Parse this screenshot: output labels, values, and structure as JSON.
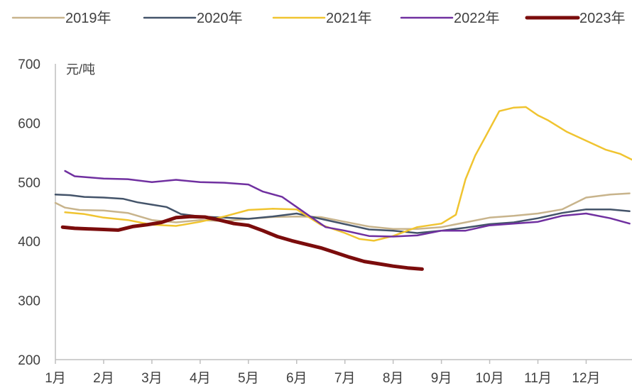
{
  "chart_data": {
    "type": "line",
    "ylabel": "元/吨",
    "ylim": [
      200,
      700
    ],
    "yticks": [
      200,
      300,
      400,
      500,
      600,
      700
    ],
    "xlim": [
      1,
      12.95
    ],
    "categories": [
      "1月",
      "2月",
      "3月",
      "4月",
      "5月",
      "6月",
      "7月",
      "8月",
      "9月",
      "10月",
      "11月",
      "12月"
    ],
    "grid": false,
    "legend": "top",
    "series": [
      {
        "name": "2019年",
        "color": "#c8b48c",
        "width": 2.5,
        "x": [
          1.0,
          1.2,
          1.5,
          2.0,
          2.5,
          3.0,
          3.5,
          4.0,
          4.5,
          5.0,
          5.5,
          6.0,
          6.5,
          7.0,
          7.5,
          8.0,
          8.5,
          9.0,
          9.5,
          10.0,
          10.5,
          11.0,
          11.5,
          12.0,
          12.5,
          12.9
        ],
        "y": [
          465,
          457,
          453,
          452,
          448,
          436,
          432,
          436,
          434,
          438,
          441,
          442,
          441,
          433,
          425,
          421,
          421,
          424,
          432,
          440,
          443,
          447,
          454,
          474,
          479,
          481
        ]
      },
      {
        "name": "2020年",
        "color": "#44546a",
        "width": 2.5,
        "x": [
          1.0,
          1.3,
          1.6,
          2.0,
          2.4,
          2.7,
          3.0,
          3.3,
          3.6,
          4.0,
          4.5,
          5.0,
          5.5,
          6.0,
          6.5,
          7.0,
          7.5,
          8.0,
          8.5,
          9.0,
          9.5,
          10.0,
          10.5,
          11.0,
          11.5,
          12.0,
          12.5,
          12.9
        ],
        "y": [
          479,
          478,
          475,
          474,
          472,
          466,
          462,
          458,
          446,
          442,
          440,
          438,
          442,
          447,
          438,
          429,
          420,
          418,
          414,
          418,
          423,
          429,
          432,
          439,
          448,
          454,
          454,
          451
        ]
      },
      {
        "name": "2021年",
        "color": "#f0c430",
        "width": 2.5,
        "x": [
          1.2,
          1.6,
          2.0,
          2.5,
          3.0,
          3.5,
          4.0,
          4.5,
          5.0,
          5.5,
          6.0,
          6.5,
          7.0,
          7.3,
          7.6,
          8.0,
          8.5,
          9.0,
          9.3,
          9.5,
          9.7,
          9.9,
          10.2,
          10.5,
          10.75,
          11.0,
          11.2,
          11.6,
          12.0,
          12.4,
          12.7,
          12.95
        ],
        "y": [
          449,
          446,
          440,
          436,
          428,
          426,
          433,
          442,
          453,
          455,
          454,
          428,
          414,
          404,
          401,
          409,
          424,
          430,
          445,
          505,
          545,
          575,
          620,
          626,
          627,
          613,
          605,
          585,
          570,
          555,
          548,
          538
        ]
      },
      {
        "name": "2022年",
        "color": "#7030a0",
        "width": 2.5,
        "x": [
          1.2,
          1.4,
          1.7,
          2.0,
          2.5,
          3.0,
          3.5,
          4.0,
          4.5,
          5.0,
          5.3,
          5.7,
          6.0,
          6.3,
          6.6,
          7.0,
          7.5,
          8.0,
          8.5,
          9.0,
          9.5,
          10.0,
          10.5,
          11.0,
          11.5,
          12.0,
          12.5,
          12.9
        ],
        "y": [
          519,
          510,
          508,
          506,
          505,
          500,
          504,
          500,
          499,
          496,
          484,
          475,
          458,
          441,
          424,
          418,
          409,
          408,
          410,
          418,
          418,
          427,
          430,
          433,
          443,
          447,
          439,
          430
        ]
      },
      {
        "name": "2023年",
        "color": "#7b0c0c",
        "width": 5,
        "x": [
          1.15,
          1.4,
          1.7,
          2.0,
          2.3,
          2.6,
          2.9,
          3.2,
          3.5,
          3.8,
          4.1,
          4.4,
          4.7,
          5.0,
          5.3,
          5.6,
          5.9,
          6.2,
          6.5,
          6.8,
          7.1,
          7.4,
          7.7,
          8.0,
          8.3,
          8.6
        ],
        "y": [
          424,
          422,
          421,
          420,
          419,
          425,
          428,
          432,
          440,
          442,
          441,
          436,
          430,
          427,
          418,
          408,
          401,
          395,
          389,
          381,
          373,
          366,
          362,
          358,
          355,
          353
        ]
      }
    ]
  }
}
